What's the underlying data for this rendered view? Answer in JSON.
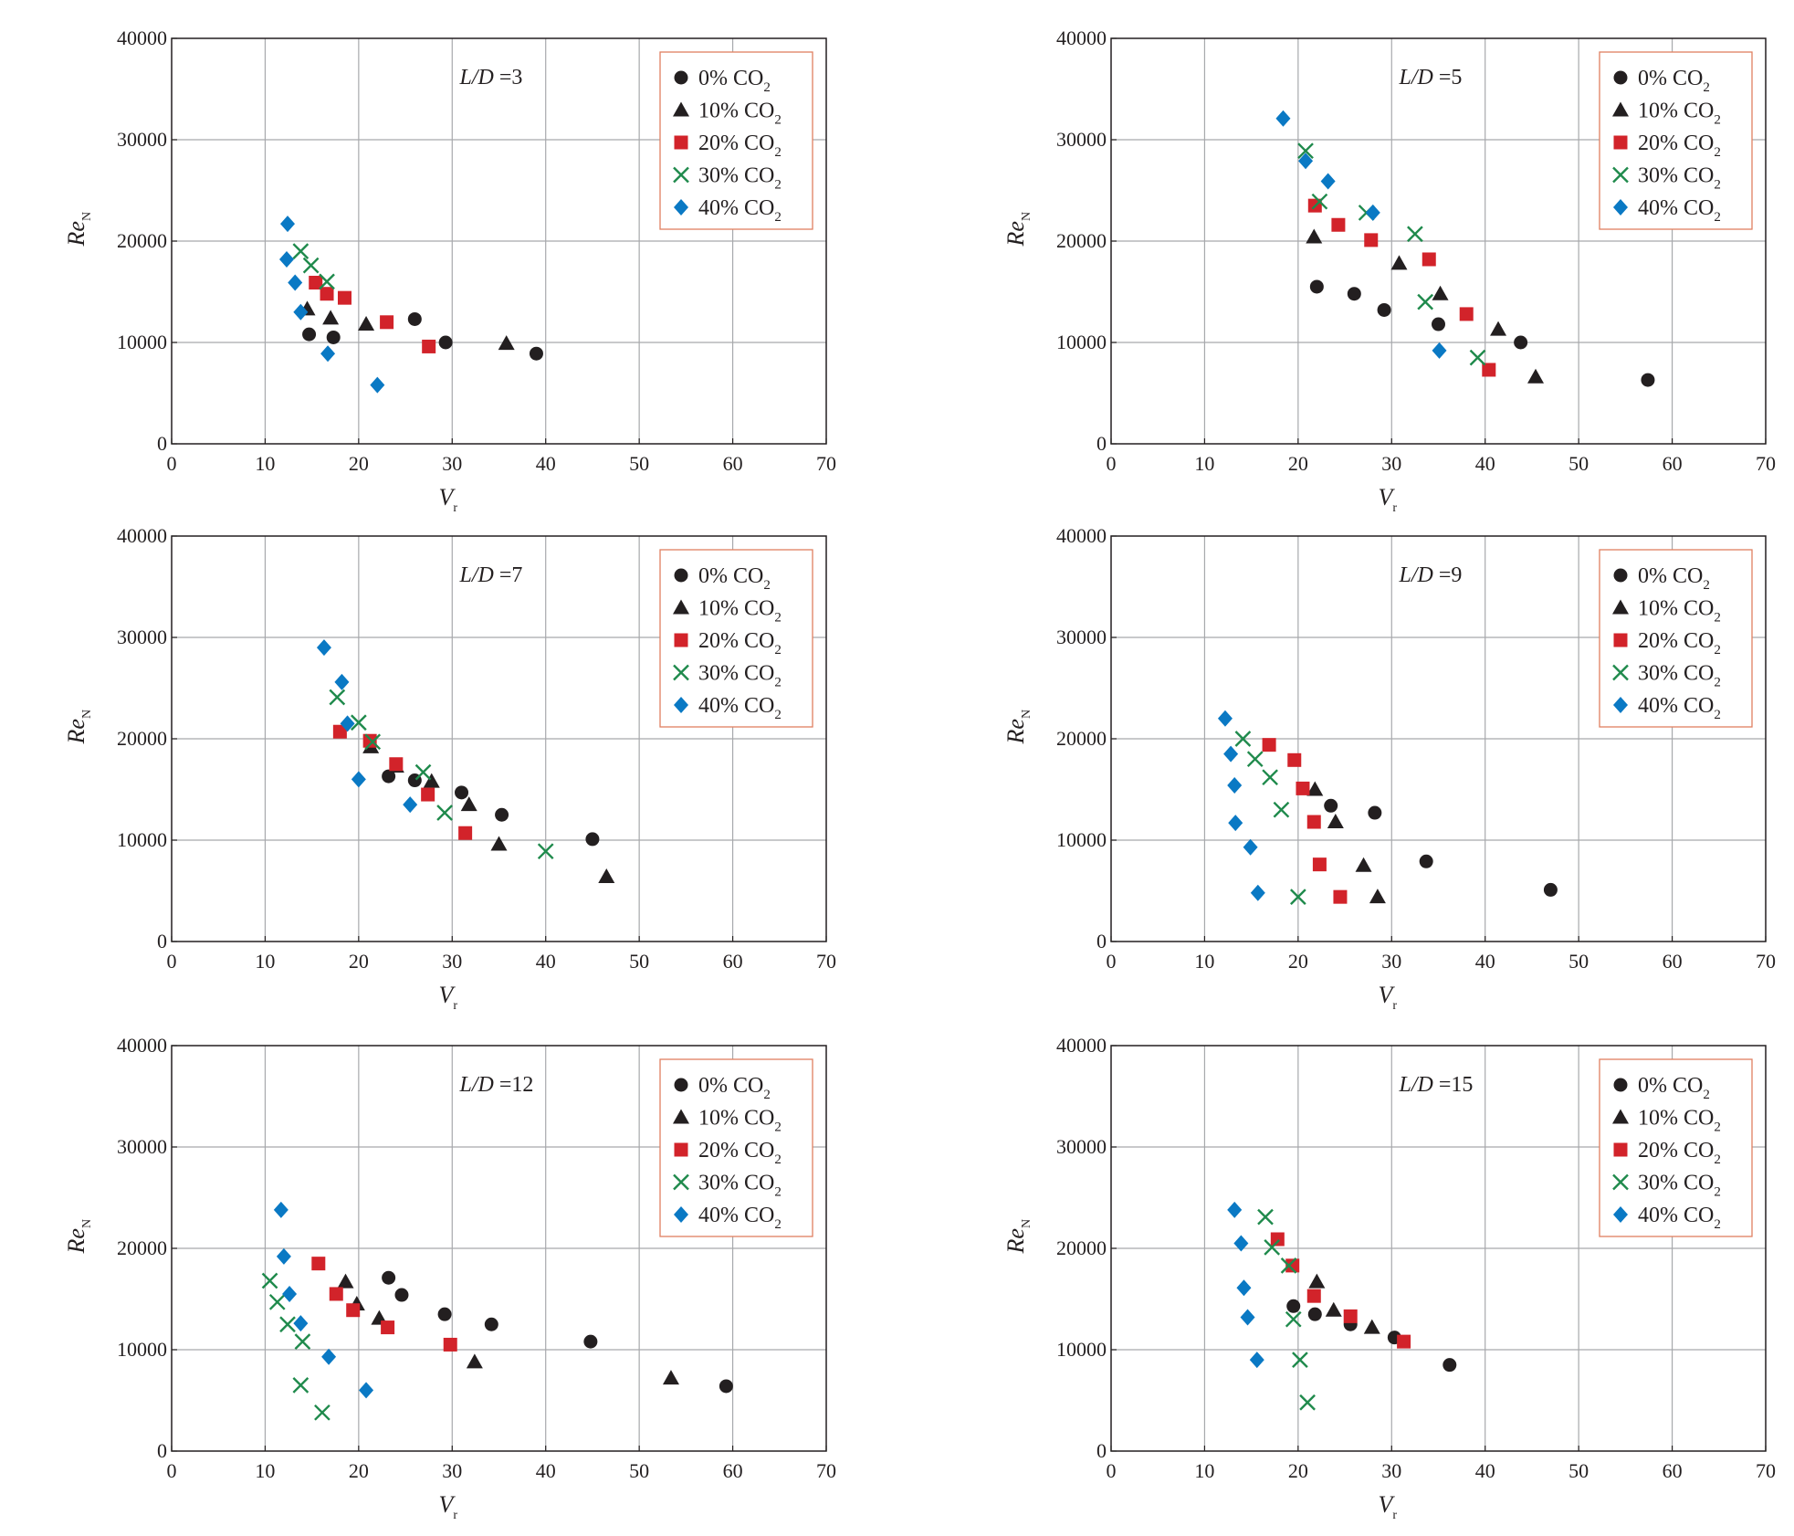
{
  "colors": {
    "series_0": "#231f20",
    "series_10": "#231f20",
    "series_20": "#d2232a",
    "series_30": "#1f8a4c",
    "series_40": "#0a79c4",
    "grid": "#a7a9ac",
    "legend_border": "#e08060",
    "axis": "#231f20"
  },
  "chart_data": [
    {
      "type": "scatter",
      "title": "L/D =3",
      "title_var": "L/D",
      "title_val": "=3",
      "xlabel": "V",
      "xlabel_sub": "r",
      "ylabel": "Re",
      "ylabel_sub": "N",
      "xlim": [
        0,
        70
      ],
      "ylim": [
        0,
        40000
      ],
      "xticks": [
        0,
        10,
        20,
        30,
        40,
        50,
        60,
        70
      ],
      "yticks": [
        0,
        10000,
        20000,
        30000,
        40000
      ],
      "grid": true,
      "legend": "top-right",
      "series": [
        {
          "name": "0% CO2",
          "label_main": "0% CO",
          "label_sub": "2",
          "marker": "circle",
          "points": [
            [
              14.7,
              10800
            ],
            [
              17.3,
              10500
            ],
            [
              26,
              12300
            ],
            [
              29.3,
              10000
            ],
            [
              39,
              8900
            ]
          ]
        },
        {
          "name": "10% CO2",
          "label_main": "10% CO",
          "label_sub": "2",
          "marker": "triangle",
          "points": [
            [
              14.5,
              13300
            ],
            [
              17,
              12400
            ],
            [
              20.8,
              11800
            ],
            [
              35.8,
              9900
            ]
          ]
        },
        {
          "name": "20% CO2",
          "label_main": "20% CO",
          "label_sub": "2",
          "marker": "square",
          "points": [
            [
              15.4,
              15900
            ],
            [
              16.6,
              14800
            ],
            [
              18.5,
              14400
            ],
            [
              23,
              12000
            ],
            [
              27.5,
              9600
            ]
          ]
        },
        {
          "name": "30% CO2",
          "label_main": "30%  CO",
          "label_sub": "2",
          "marker": "x",
          "points": [
            [
              13.8,
              19000
            ],
            [
              14.9,
              17600
            ],
            [
              16.6,
              16000
            ]
          ]
        },
        {
          "name": "40% CO2",
          "label_main": "40% CO",
          "label_sub": "2",
          "marker": "diamond",
          "points": [
            [
              12.4,
              21700
            ],
            [
              12.3,
              18200
            ],
            [
              13.2,
              15900
            ],
            [
              13.8,
              13000
            ],
            [
              16.7,
              8900
            ],
            [
              22,
              5800
            ]
          ]
        }
      ]
    },
    {
      "type": "scatter",
      "title": "L/D =5",
      "title_var": "L/D",
      "title_val": "=5",
      "xlabel": "V",
      "xlabel_sub": "r",
      "ylabel": "Re",
      "ylabel_sub": "N",
      "xlim": [
        0,
        70
      ],
      "ylim": [
        0,
        40000
      ],
      "xticks": [
        0,
        10,
        20,
        30,
        40,
        50,
        60,
        70
      ],
      "yticks": [
        0,
        10000,
        20000,
        30000,
        40000
      ],
      "grid": true,
      "legend": "top-right",
      "series": [
        {
          "name": "0% CO2",
          "label_main": "0% CO",
          "label_sub": "2",
          "marker": "circle",
          "points": [
            [
              22,
              15500
            ],
            [
              26,
              14800
            ],
            [
              29.2,
              13200
            ],
            [
              35,
              11800
            ],
            [
              43.8,
              10000
            ],
            [
              57.4,
              6300
            ]
          ]
        },
        {
          "name": "10% CO2",
          "label_main": "10% CO",
          "label_sub": "2",
          "marker": "triangle",
          "points": [
            [
              21.7,
              20400
            ],
            [
              30.8,
              17800
            ],
            [
              35.2,
              14800
            ],
            [
              41.4,
              11300
            ],
            [
              45.4,
              6600
            ]
          ]
        },
        {
          "name": "20% CO2",
          "label_main": "20% CO",
          "label_sub": "2",
          "marker": "square",
          "points": [
            [
              21.8,
              23500
            ],
            [
              24.3,
              21600
            ],
            [
              27.8,
              20100
            ],
            [
              34,
              18200
            ],
            [
              38,
              12800
            ],
            [
              40.4,
              7300
            ]
          ]
        },
        {
          "name": "30% CO2",
          "label_main": "30%  CO",
          "label_sub": "2",
          "marker": "x",
          "points": [
            [
              20.8,
              28900
            ],
            [
              22.3,
              23900
            ],
            [
              27.3,
              22800
            ],
            [
              32.5,
              20700
            ],
            [
              33.6,
              14000
            ],
            [
              39.2,
              8500
            ]
          ]
        },
        {
          "name": "40% CO2",
          "label_main": "40% CO",
          "label_sub": "2",
          "marker": "diamond",
          "points": [
            [
              18.4,
              32100
            ],
            [
              20.8,
              27900
            ],
            [
              23.2,
              25900
            ],
            [
              28,
              22800
            ],
            [
              35.1,
              9200
            ]
          ]
        }
      ]
    },
    {
      "type": "scatter",
      "title": "L/D =7",
      "title_var": "L/D",
      "title_val": "=7",
      "xlabel": "V",
      "xlabel_sub": "r",
      "ylabel": "Re",
      "ylabel_sub": "N",
      "xlim": [
        0,
        70
      ],
      "ylim": [
        0,
        40000
      ],
      "xticks": [
        0,
        10,
        20,
        30,
        40,
        50,
        60,
        70
      ],
      "yticks": [
        0,
        10000,
        20000,
        30000,
        40000
      ],
      "grid": true,
      "legend": "top-right",
      "series": [
        {
          "name": "0% CO2",
          "label_main": "0% CO",
          "label_sub": "2",
          "marker": "circle",
          "points": [
            [
              23.2,
              16300
            ],
            [
              26,
              15900
            ],
            [
              31,
              14700
            ],
            [
              35.3,
              12500
            ],
            [
              45,
              10100
            ]
          ]
        },
        {
          "name": "10% CO2",
          "label_main": "10% CO",
          "label_sub": "2",
          "marker": "triangle",
          "points": [
            [
              21.3,
              19200
            ],
            [
              24,
              17300
            ],
            [
              27.8,
              15800
            ],
            [
              31.8,
              13500
            ],
            [
              35,
              9600
            ],
            [
              46.5,
              6400
            ]
          ]
        },
        {
          "name": "20% CO2",
          "label_main": "20% CO",
          "label_sub": "2",
          "marker": "square",
          "points": [
            [
              18,
              20700
            ],
            [
              21.2,
              19800
            ],
            [
              24,
              17500
            ],
            [
              27.4,
              14500
            ],
            [
              31.4,
              10700
            ]
          ]
        },
        {
          "name": "30% CO2",
          "label_main": "30%  CO",
          "label_sub": "2",
          "marker": "x",
          "points": [
            [
              17.7,
              24100
            ],
            [
              20,
              21600
            ],
            [
              21.5,
              19700
            ],
            [
              26.9,
              16700
            ],
            [
              29.2,
              12700
            ],
            [
              40,
              8900
            ]
          ]
        },
        {
          "name": "40% CO2",
          "label_main": "40% CO",
          "label_sub": "2",
          "marker": "diamond",
          "points": [
            [
              16.3,
              29000
            ],
            [
              18.2,
              25600
            ],
            [
              18.8,
              21500
            ],
            [
              20,
              16000
            ],
            [
              25.5,
              13500
            ]
          ]
        }
      ]
    },
    {
      "type": "scatter",
      "title": "L/D =9",
      "title_var": "L/D",
      "title_val": "=9",
      "xlabel": "V",
      "xlabel_sub": "r",
      "ylabel": "Re",
      "ylabel_sub": "N",
      "xlim": [
        0,
        70
      ],
      "ylim": [
        0,
        40000
      ],
      "xticks": [
        0,
        10,
        20,
        30,
        40,
        50,
        60,
        70
      ],
      "yticks": [
        0,
        10000,
        20000,
        30000,
        40000
      ],
      "grid": true,
      "legend": "top-right",
      "series": [
        {
          "name": "0% CO2",
          "label_main": "0% CO",
          "label_sub": "2",
          "marker": "circle",
          "points": [
            [
              23.5,
              13400
            ],
            [
              28.2,
              12700
            ],
            [
              33.7,
              7900
            ],
            [
              47,
              5100
            ]
          ]
        },
        {
          "name": "10% CO2",
          "label_main": "10% CO",
          "label_sub": "2",
          "marker": "triangle",
          "points": [
            [
              21.8,
              15000
            ],
            [
              24,
              11800
            ],
            [
              27,
              7500
            ],
            [
              28.5,
              4400
            ]
          ]
        },
        {
          "name": "20% CO2",
          "label_main": "20% CO",
          "label_sub": "2",
          "marker": "square",
          "points": [
            [
              16.9,
              19400
            ],
            [
              19.6,
              17900
            ],
            [
              20.5,
              15100
            ],
            [
              21.7,
              11800
            ],
            [
              22.3,
              7600
            ],
            [
              24.5,
              4400
            ]
          ]
        },
        {
          "name": "30% CO2",
          "label_main": "30%  CO",
          "label_sub": "2",
          "marker": "x",
          "points": [
            [
              14.1,
              20000
            ],
            [
              15.4,
              18000
            ],
            [
              17,
              16200
            ],
            [
              18.2,
              13000
            ],
            [
              20,
              4400
            ]
          ]
        },
        {
          "name": "40% CO2",
          "label_main": "40% CO",
          "label_sub": "2",
          "marker": "diamond",
          "points": [
            [
              12.2,
              22000
            ],
            [
              12.8,
              18500
            ],
            [
              13.2,
              15400
            ],
            [
              13.3,
              11700
            ],
            [
              14.9,
              9300
            ],
            [
              15.7,
              4800
            ]
          ]
        }
      ]
    },
    {
      "type": "scatter",
      "title": "L/D =12",
      "title_var": "L/D",
      "title_val": "=12",
      "xlabel": "V",
      "xlabel_sub": "r",
      "ylabel": "Re",
      "ylabel_sub": "N",
      "xlim": [
        0,
        70
      ],
      "ylim": [
        0,
        40000
      ],
      "xticks": [
        0,
        10,
        20,
        30,
        40,
        50,
        60,
        70
      ],
      "yticks": [
        0,
        10000,
        20000,
        30000,
        40000
      ],
      "grid": true,
      "legend": "top-right",
      "series": [
        {
          "name": "0% CO2",
          "label_main": "0% CO",
          "label_sub": "2",
          "marker": "circle",
          "points": [
            [
              23.2,
              17100
            ],
            [
              24.6,
              15400
            ],
            [
              29.2,
              13500
            ],
            [
              34.2,
              12500
            ],
            [
              44.8,
              10800
            ],
            [
              59.3,
              6400
            ]
          ]
        },
        {
          "name": "10% CO2",
          "label_main": "10% CO",
          "label_sub": "2",
          "marker": "triangle",
          "points": [
            [
              18.6,
              16700
            ],
            [
              19.8,
              14500
            ],
            [
              22.2,
              13100
            ],
            [
              32.4,
              8800
            ],
            [
              53.4,
              7200
            ]
          ]
        },
        {
          "name": "20% CO2",
          "label_main": "20% CO",
          "label_sub": "2",
          "marker": "square",
          "points": [
            [
              15.7,
              18500
            ],
            [
              17.6,
              15500
            ],
            [
              19.4,
              13900
            ],
            [
              23.1,
              12200
            ],
            [
              29.8,
              10500
            ]
          ]
        },
        {
          "name": "30% CO2",
          "label_main": "30%  CO",
          "label_sub": "2",
          "marker": "x",
          "points": [
            [
              10.5,
              16800
            ],
            [
              11.3,
              14700
            ],
            [
              12.4,
              12500
            ],
            [
              14,
              10800
            ],
            [
              13.8,
              6500
            ],
            [
              16.1,
              3800
            ]
          ]
        },
        {
          "name": "40% CO2",
          "label_main": "40% CO",
          "label_sub": "2",
          "marker": "diamond",
          "points": [
            [
              11.7,
              23800
            ],
            [
              12,
              19200
            ],
            [
              12.6,
              15500
            ],
            [
              13.8,
              12600
            ],
            [
              16.8,
              9300
            ],
            [
              20.8,
              6000
            ]
          ]
        }
      ]
    },
    {
      "type": "scatter",
      "title": "L/D =15",
      "title_var": "L/D",
      "title_val": "=15",
      "xlabel": "V",
      "xlabel_sub": "r",
      "ylabel": "Re",
      "ylabel_sub": "N",
      "xlim": [
        0,
        70
      ],
      "ylim": [
        0,
        40000
      ],
      "xticks": [
        0,
        10,
        20,
        30,
        40,
        50,
        60,
        70
      ],
      "yticks": [
        0,
        10000,
        20000,
        30000,
        40000
      ],
      "grid": true,
      "legend": "top-right",
      "series": [
        {
          "name": "0% CO2",
          "label_main": "0% CO",
          "label_sub": "2",
          "marker": "circle",
          "points": [
            [
              19.5,
              14300
            ],
            [
              21.8,
              13500
            ],
            [
              25.6,
              12500
            ],
            [
              30.3,
              11200
            ],
            [
              36.2,
              8500
            ]
          ]
        },
        {
          "name": "10% CO2",
          "label_main": "10% CO",
          "label_sub": "2",
          "marker": "triangle",
          "points": [
            [
              22,
              16700
            ],
            [
              23.8,
              13900
            ],
            [
              27.9,
              12200
            ]
          ]
        },
        {
          "name": "20% CO2",
          "label_main": "20% CO",
          "label_sub": "2",
          "marker": "square",
          "points": [
            [
              17.8,
              20900
            ],
            [
              19.4,
              18300
            ],
            [
              21.7,
              15300
            ],
            [
              25.6,
              13300
            ],
            [
              31.3,
              10800
            ]
          ]
        },
        {
          "name": "30% CO2",
          "label_main": "30%  CO",
          "label_sub": "2",
          "marker": "x",
          "points": [
            [
              16.5,
              23100
            ],
            [
              17.2,
              20100
            ],
            [
              19,
              18300
            ],
            [
              19.5,
              13000
            ],
            [
              20.2,
              9000
            ],
            [
              21,
              4800
            ]
          ]
        },
        {
          "name": "40% CO2",
          "label_main": "40% CO",
          "label_sub": "2",
          "marker": "diamond",
          "points": [
            [
              13.2,
              23800
            ],
            [
              13.9,
              20500
            ],
            [
              14.2,
              16100
            ],
            [
              14.6,
              13200
            ],
            [
              15.6,
              9000
            ]
          ]
        }
      ]
    }
  ]
}
